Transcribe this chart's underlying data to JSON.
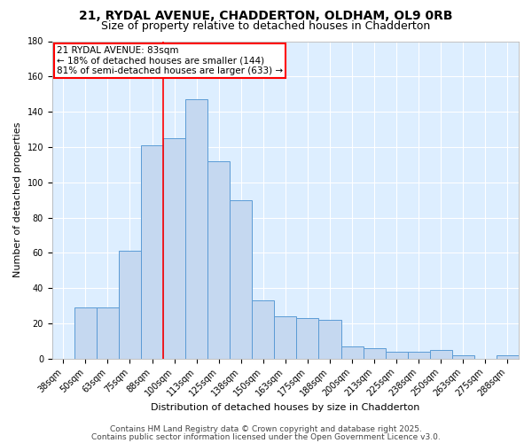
{
  "title_line1": "21, RYDAL AVENUE, CHADDERTON, OLDHAM, OL9 0RB",
  "title_line2": "Size of property relative to detached houses in Chadderton",
  "xlabel": "Distribution of detached houses by size in Chadderton",
  "ylabel": "Number of detached properties",
  "categories": [
    "38sqm",
    "50sqm",
    "63sqm",
    "75sqm",
    "88sqm",
    "100sqm",
    "113sqm",
    "125sqm",
    "138sqm",
    "150sqm",
    "163sqm",
    "175sqm",
    "188sqm",
    "200sqm",
    "213sqm",
    "225sqm",
    "238sqm",
    "250sqm",
    "263sqm",
    "275sqm",
    "288sqm"
  ],
  "values": [
    0,
    29,
    29,
    61,
    121,
    125,
    147,
    112,
    90,
    33,
    24,
    23,
    22,
    7,
    6,
    4,
    4,
    5,
    2,
    0,
    2
  ],
  "bar_color": "#c5d8f0",
  "bar_edge_color": "#5b9bd5",
  "annotation_text": "21 RYDAL AVENUE: 83sqm\n← 18% of detached houses are smaller (144)\n81% of semi-detached houses are larger (633) →",
  "annotation_box_color": "white",
  "annotation_box_edge_color": "red",
  "ylim": [
    0,
    180
  ],
  "yticks": [
    0,
    20,
    40,
    60,
    80,
    100,
    120,
    140,
    160,
    180
  ],
  "footer_line1": "Contains HM Land Registry data © Crown copyright and database right 2025.",
  "footer_line2": "Contains public sector information licensed under the Open Government Licence v3.0.",
  "background_color": "#ddeeff",
  "grid_color": "white",
  "title_fontsize": 10,
  "subtitle_fontsize": 9,
  "axis_label_fontsize": 8,
  "tick_fontsize": 7,
  "footer_fontsize": 6.5,
  "red_line_index": 4.5
}
